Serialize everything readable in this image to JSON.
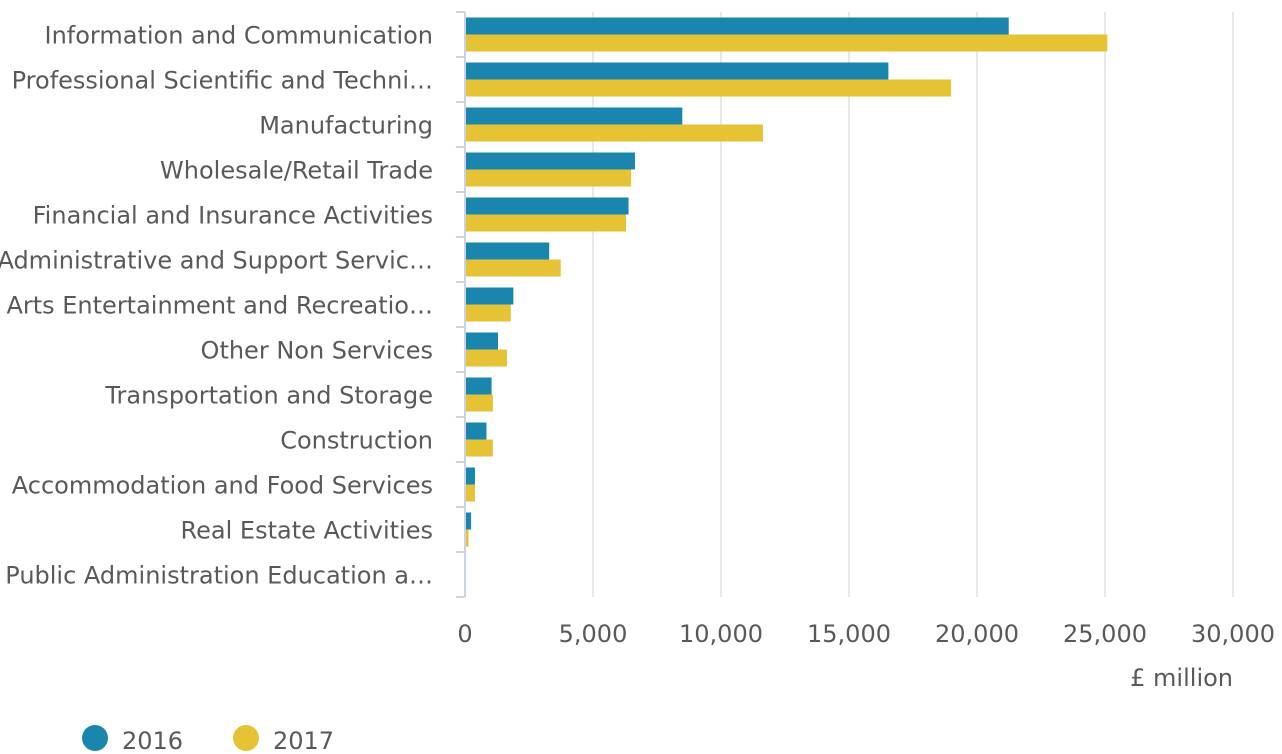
{
  "chart_data": {
    "type": "bar",
    "orientation": "horizontal",
    "categories": [
      "Information and Communication",
      "Professional Scientific and Techni…",
      "Manufacturing",
      "Wholesale/Retail Trade",
      "Financial and Insurance Activities",
      "Administrative and Support Servic…",
      "Arts Entertainment and Recreatio…",
      "Other Non Services",
      "Transportation and Storage",
      "Construction",
      "Accommodation and Food Services",
      "Real Estate Activities",
      "Public Administration Education a…"
    ],
    "series": [
      {
        "name": "2016",
        "color": "#1a86ad",
        "values": [
          21200,
          16500,
          8450,
          6600,
          6350,
          3250,
          1850,
          1250,
          1000,
          800,
          350,
          200,
          0
        ]
      },
      {
        "name": "2017",
        "color": "#e6c235",
        "values": [
          25050,
          18950,
          11600,
          6450,
          6250,
          3700,
          1750,
          1600,
          1050,
          1050,
          350,
          100,
          0
        ]
      }
    ],
    "xlabel": "£ million",
    "xlim": [
      0,
      30000
    ],
    "xticks": [
      0,
      5000,
      10000,
      15000,
      20000,
      25000,
      30000
    ],
    "xtick_labels": [
      "0",
      "5,000",
      "10,000",
      "15,000",
      "20,000",
      "25,000",
      "30,000"
    ],
    "grid": true,
    "legend_position": "bottom-left"
  }
}
